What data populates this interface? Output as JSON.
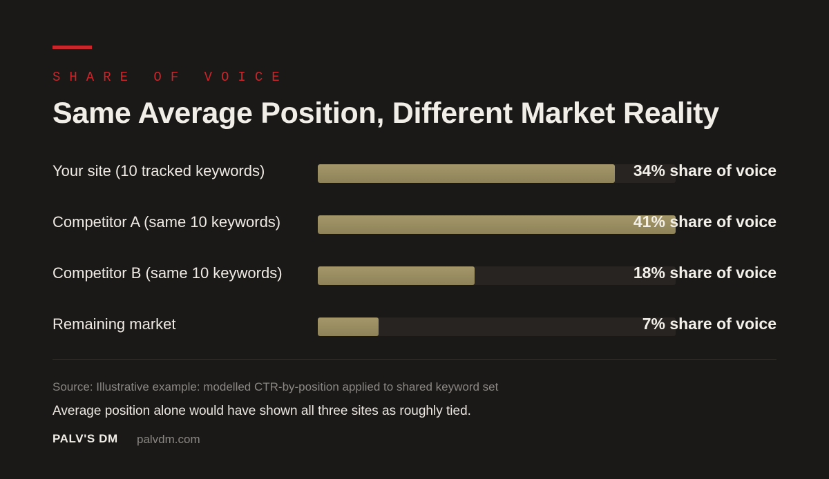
{
  "kicker": "SHARE OF VOICE",
  "colors": {
    "accent": "#c8262a",
    "bar_fill": "#9a8e62",
    "bar_track": "#272421",
    "background": "#1a1918"
  },
  "chart_data": {
    "type": "bar",
    "orientation": "horizontal",
    "title": "Same Average Position, Different Market Reality",
    "xlim": [
      0,
      41
    ],
    "categories": [
      "Your site (10 tracked keywords)",
      "Competitor A (same 10 keywords)",
      "Competitor B (same 10 keywords)",
      "Remaining market"
    ],
    "values": [
      34,
      41,
      18,
      7
    ],
    "value_labels": [
      "34% share of voice",
      "41% share of voice",
      "18% share of voice",
      "7% share of voice"
    ],
    "grid": false,
    "legend": "none"
  },
  "footer": {
    "source": "Source: Illustrative example: modelled CTR-by-position applied to shared keyword set",
    "note": "Average position alone would have shown all three sites as roughly tied.",
    "brand": "PALV'S DM",
    "site": "palvdm.com"
  }
}
